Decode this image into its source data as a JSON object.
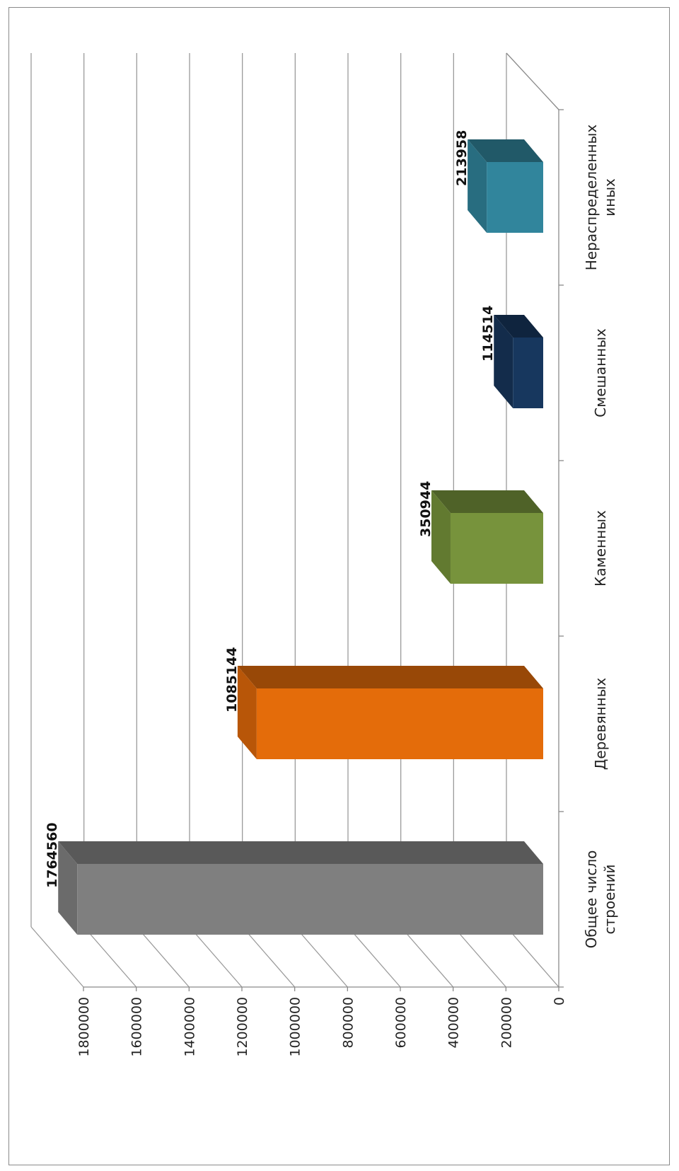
{
  "chart_data": {
    "type": "bar",
    "orientation": "rotated-90-clockwise",
    "categories": [
      "Общее число строений",
      "Деревянных",
      "Каменных",
      "Смешанных",
      "Нераспределенных иных"
    ],
    "category_lines": [
      [
        "Общее число",
        "строений"
      ],
      [
        "Деревянных"
      ],
      [
        "Каменных"
      ],
      [
        "Смешанных"
      ],
      [
        "Нераспределенных",
        "иных"
      ]
    ],
    "values": [
      1764560,
      1085144,
      350944,
      114514,
      213958
    ],
    "value_labels": [
      "1764560",
      "1085144",
      "350944",
      "114514",
      "213958"
    ],
    "colors": [
      {
        "front": "#7f7f7f",
        "top": "#595959",
        "side": "#6b6b6b"
      },
      {
        "front": "#e46c0a",
        "top": "#984807",
        "side": "#b85608"
      },
      {
        "front": "#77933c",
        "top": "#4f6228",
        "side": "#627a30"
      },
      {
        "front": "#17375e",
        "top": "#0f243e",
        "side": "#132c4b"
      },
      {
        "front": "#31859c",
        "top": "#215968",
        "side": "#286d80"
      }
    ],
    "ylim": [
      0,
      1800000
    ],
    "yticks": [
      0,
      200000,
      400000,
      600000,
      800000,
      1000000,
      1200000,
      1400000,
      1600000,
      1800000
    ],
    "ytick_labels": [
      "0",
      "200000",
      "400000",
      "600000",
      "800000",
      "1000000",
      "1200000",
      "1400000",
      "1600000",
      "1800000"
    ],
    "grid": true,
    "style": "3d"
  }
}
